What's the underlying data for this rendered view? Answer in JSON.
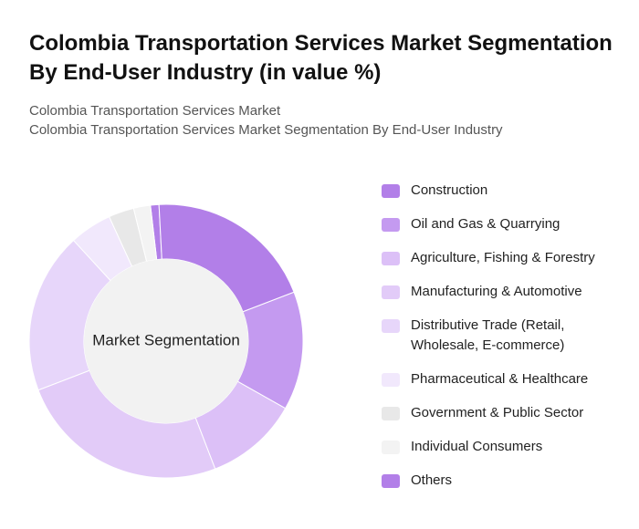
{
  "chart_data": {
    "type": "donut",
    "title": "Colombia Transportation Services Market Segmentation By End-User Industry (in value %)",
    "subtitle": [
      "Colombia Transportation Services Market",
      "Colombia Transportation Services Market Segmentation By End-User Industry"
    ],
    "center_label": "Market Segmentation",
    "categories": [
      "Construction",
      "Oil and Gas & Quarrying",
      "Agriculture, Fishing & Forestry",
      "Manufacturing & Automotive",
      "Distributive Trade (Retail, Wholesale, E-commerce)",
      "Pharmaceutical & Healthcare",
      "Government & Public Sector",
      "Individual Consumers",
      "Others"
    ],
    "values": [
      20,
      14,
      11,
      25,
      19,
      5,
      3,
      2,
      1
    ],
    "colors": [
      "#b27fe8",
      "#c49af0",
      "#dcc0f7",
      "#e2cbf8",
      "#e7d6fa",
      "#f1e8fc",
      "#e8e8e8",
      "#f3f3f3",
      "#b27fe8"
    ]
  }
}
